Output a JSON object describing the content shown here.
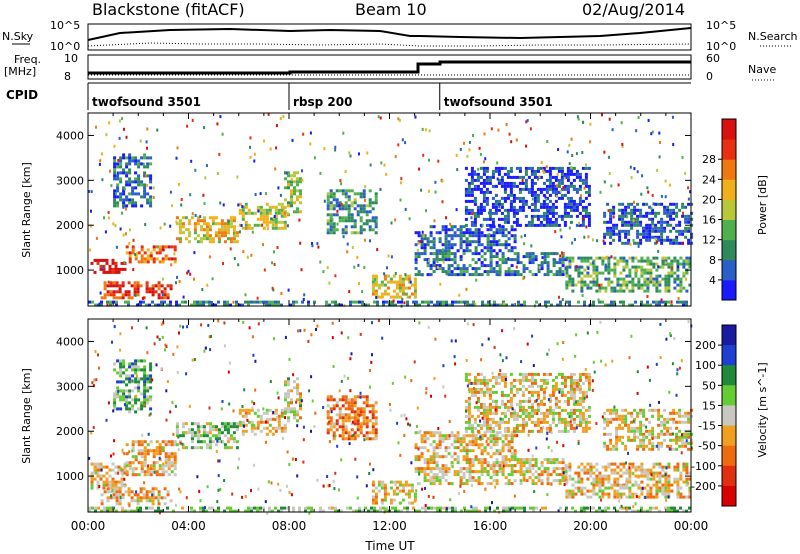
{
  "header": {
    "title": "Blackstone (fitACF)",
    "beam": "Beam 10",
    "date": "02/Aug/2014"
  },
  "panels": {
    "nsky_label": "N.Sky",
    "nsearch_label": "N.Search",
    "freq_label_1": "Freq.",
    "freq_label_2": "[MHz]",
    "nave_label": "Nave",
    "cpid_label": "CPID",
    "nsky_ticks": [
      "10^5",
      "10^0"
    ],
    "nsearch_ticks": [
      "10^5",
      "10^0"
    ],
    "freq_ticks": [
      "10",
      "8"
    ],
    "nave_ticks": [
      "60",
      "0"
    ],
    "cpid_segments": [
      {
        "label": "twofsound 3501",
        "start_hour": 0
      },
      {
        "label": "rbsp 200",
        "start_hour": 8
      },
      {
        "label": "twofsound 3501",
        "start_hour": 14
      }
    ]
  },
  "chart_data": [
    {
      "type": "heatmap",
      "name": "power",
      "ylabel": "Slant Range [km]",
      "yticks": [
        "1000",
        "2000",
        "3000",
        "4000"
      ],
      "ylim": [
        200,
        4500
      ],
      "xlim": [
        0,
        24
      ],
      "colorbar_label": "Power [dB]",
      "colorbar_ticks": [
        "4",
        "8",
        "12",
        "16",
        "20",
        "24",
        "28"
      ],
      "colorbar_colors": [
        "#1a1aff",
        "#2a5ec8",
        "#2e8a5a",
        "#4fb04f",
        "#b8c83a",
        "#f0b01a",
        "#f07810",
        "#e83010",
        "#d81010"
      ],
      "bands": [
        {
          "t0": 0.1,
          "t1": 1.5,
          "r0": 950,
          "r1": 1250,
          "level": 0.95
        },
        {
          "t0": 1.5,
          "t1": 3.5,
          "r0": 1150,
          "r1": 1550,
          "level": 0.75
        },
        {
          "t0": 3.5,
          "t1": 6.0,
          "r0": 1600,
          "r1": 2200,
          "level": 0.6
        },
        {
          "t0": 6.0,
          "t1": 7.9,
          "r0": 1900,
          "r1": 2500,
          "level": 0.5
        },
        {
          "t0": 0.5,
          "t1": 3.3,
          "r0": 350,
          "r1": 750,
          "level": 0.85
        },
        {
          "t0": 7.8,
          "t1": 8.4,
          "r0": 2200,
          "r1": 3200,
          "level": 0.45
        },
        {
          "t0": 1.0,
          "t1": 2.5,
          "r0": 2400,
          "r1": 3600,
          "level": 0.2
        },
        {
          "t0": 9.5,
          "t1": 11.5,
          "r0": 1800,
          "r1": 2800,
          "level": 0.3
        },
        {
          "t0": 11.3,
          "t1": 13.0,
          "r0": 400,
          "r1": 900,
          "level": 0.55
        },
        {
          "t0": 13.0,
          "t1": 19.0,
          "r0": 900,
          "r1": 1400,
          "level": 0.2
        },
        {
          "t0": 13.0,
          "t1": 17.0,
          "r0": 1400,
          "r1": 2000,
          "level": 0.15
        },
        {
          "t0": 19.0,
          "t1": 24.0,
          "r0": 500,
          "r1": 1300,
          "level": 0.35
        },
        {
          "t0": 20.5,
          "t1": 24.0,
          "r0": 1600,
          "r1": 2500,
          "level": 0.15
        },
        {
          "t0": 15.0,
          "t1": 20.0,
          "r0": 2000,
          "r1": 3300,
          "level": 0.1
        },
        {
          "t0": 0.0,
          "t1": 24.0,
          "r0": 200,
          "r1": 320,
          "level": 0.25
        }
      ]
    },
    {
      "type": "heatmap",
      "name": "velocity",
      "ylabel": "Slant Range [km]",
      "yticks": [
        "1000",
        "2000",
        "3000",
        "4000"
      ],
      "ylim": [
        200,
        4500
      ],
      "xlim": [
        0,
        24
      ],
      "xlabel": "Time UT",
      "xticks": [
        "00:00",
        "04:00",
        "08:00",
        "12:00",
        "16:00",
        "20:00",
        "00:00"
      ],
      "colorbar_label": "Velocity [m s^-1]",
      "colorbar_ticks": [
        "200",
        "100",
        "50",
        "15",
        "-15",
        "-50",
        "-100",
        "-200"
      ],
      "colorbar_colors": [
        "#1a1aa0",
        "#1f3fd0",
        "#1e8a3a",
        "#66cc33",
        "#c8c8c0",
        "#f0a020",
        "#f06a10",
        "#e03010",
        "#d80000"
      ],
      "bands": [
        {
          "t0": 0.1,
          "t1": 1.5,
          "r0": 700,
          "r1": 1300,
          "level": 0.4
        },
        {
          "t0": 1.5,
          "t1": 3.5,
          "r0": 1000,
          "r1": 1800,
          "level": 0.4
        },
        {
          "t0": 3.5,
          "t1": 6.0,
          "r0": 1600,
          "r1": 2200,
          "level": 0.6
        },
        {
          "t0": 6.0,
          "t1": 7.9,
          "r0": 1900,
          "r1": 2500,
          "level": 0.45
        },
        {
          "t0": 0.5,
          "t1": 3.3,
          "r0": 350,
          "r1": 750,
          "level": 0.4
        },
        {
          "t0": 7.8,
          "t1": 8.4,
          "r0": 2200,
          "r1": 3200,
          "level": 0.5
        },
        {
          "t0": 1.0,
          "t1": 2.5,
          "r0": 2400,
          "r1": 3600,
          "level": 0.65
        },
        {
          "t0": 9.5,
          "t1": 11.5,
          "r0": 1800,
          "r1": 2800,
          "level": 0.3
        },
        {
          "t0": 11.3,
          "t1": 13.0,
          "r0": 400,
          "r1": 900,
          "level": 0.45
        },
        {
          "t0": 13.0,
          "t1": 19.0,
          "r0": 800,
          "r1": 1400,
          "level": 0.45
        },
        {
          "t0": 13.0,
          "t1": 17.0,
          "r0": 1400,
          "r1": 2000,
          "level": 0.45
        },
        {
          "t0": 19.0,
          "t1": 24.0,
          "r0": 500,
          "r1": 1300,
          "level": 0.42
        },
        {
          "t0": 20.5,
          "t1": 24.0,
          "r0": 1600,
          "r1": 2500,
          "level": 0.45
        },
        {
          "t0": 15.0,
          "t1": 20.0,
          "r0": 2000,
          "r1": 3300,
          "level": 0.45
        },
        {
          "t0": 0.0,
          "t1": 24.0,
          "r0": 200,
          "r1": 320,
          "level": 0.6
        }
      ]
    }
  ]
}
